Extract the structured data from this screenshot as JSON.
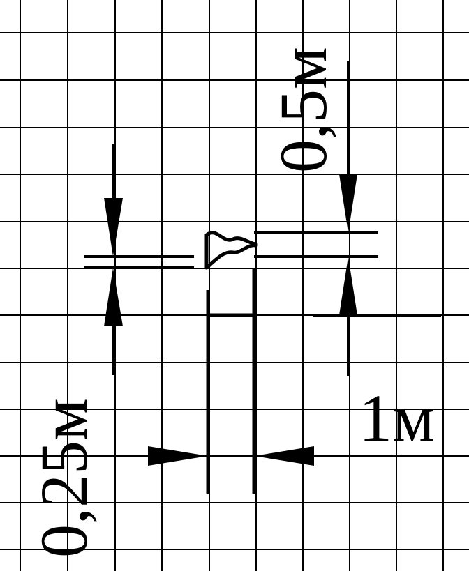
{
  "diagram": {
    "labels": {
      "left_dimension": "0,25м",
      "top_dimension": "0,5м",
      "bottom_right_dimension": "1м",
      "break_mark": "≈"
    },
    "colors": {
      "background": "#ffffff",
      "grid": "#000000",
      "lines": "#000000"
    }
  }
}
